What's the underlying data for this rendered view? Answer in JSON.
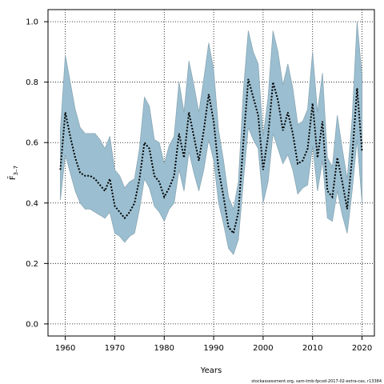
{
  "chart_data": {
    "type": "line",
    "xlabel": "Years",
    "ylabel": "F̄",
    "ylabel_sub": "3–7",
    "credit": "stockassessment.org, sam-tmb-fpcod-2017-02-extra-cas, r13384",
    "xlim": [
      1956.5,
      2022.5
    ],
    "ylim": [
      -0.04,
      1.04
    ],
    "x_ticks": [
      1960,
      1970,
      1980,
      1990,
      2000,
      2010,
      2020
    ],
    "y_ticks": [
      0.0,
      0.2,
      0.4,
      0.6,
      0.8,
      1.0
    ],
    "y_tick_labels": [
      "0.0",
      "0.2",
      "0.4",
      "0.6",
      "0.8",
      "1.0"
    ],
    "grid": true,
    "band_color": "#9bbfd1",
    "band_edge_color": "#8aa7b5",
    "line_color": "#000000",
    "series": [
      {
        "x": [
          1959,
          1960,
          1961,
          1962,
          1963,
          1964,
          1965,
          1966,
          1967,
          1968,
          1969,
          1970,
          1971,
          1972,
          1973,
          1974,
          1975,
          1976,
          1977,
          1978,
          1979,
          1980,
          1981,
          1982,
          1983,
          1984,
          1985,
          1986,
          1987,
          1988,
          1989,
          1990,
          1991,
          1992,
          1993,
          1994,
          1995,
          1996,
          1997,
          1998,
          1999,
          2000,
          2001,
          2002,
          2003,
          2004,
          2005,
          2006,
          2007,
          2008,
          2009,
          2010,
          2011,
          2012,
          2013,
          2014,
          2015,
          2016,
          2017,
          2018,
          2019,
          2020
        ],
        "estimate": [
          0.51,
          0.7,
          0.62,
          0.55,
          0.5,
          0.49,
          0.49,
          0.48,
          0.46,
          0.44,
          0.48,
          0.39,
          0.37,
          0.35,
          0.37,
          0.4,
          0.48,
          0.6,
          0.58,
          0.49,
          0.47,
          0.42,
          0.45,
          0.49,
          0.63,
          0.55,
          0.7,
          0.62,
          0.54,
          0.64,
          0.76,
          0.67,
          0.51,
          0.42,
          0.32,
          0.3,
          0.37,
          0.6,
          0.81,
          0.75,
          0.69,
          0.51,
          0.62,
          0.8,
          0.74,
          0.64,
          0.7,
          0.63,
          0.53,
          0.54,
          0.58,
          0.73,
          0.55,
          0.67,
          0.44,
          0.42,
          0.55,
          0.47,
          0.38,
          0.55,
          0.78,
          0.57
        ],
        "lower": [
          0.41,
          0.56,
          0.5,
          0.44,
          0.4,
          0.38,
          0.38,
          0.37,
          0.36,
          0.35,
          0.37,
          0.3,
          0.29,
          0.27,
          0.29,
          0.3,
          0.38,
          0.48,
          0.45,
          0.39,
          0.37,
          0.34,
          0.38,
          0.4,
          0.51,
          0.44,
          0.57,
          0.5,
          0.44,
          0.51,
          0.61,
          0.54,
          0.4,
          0.33,
          0.25,
          0.23,
          0.28,
          0.47,
          0.65,
          0.61,
          0.58,
          0.4,
          0.47,
          0.63,
          0.58,
          0.53,
          0.56,
          0.51,
          0.43,
          0.45,
          0.46,
          0.59,
          0.44,
          0.54,
          0.35,
          0.34,
          0.44,
          0.36,
          0.3,
          0.44,
          0.61,
          0.4
        ],
        "upper": [
          0.64,
          0.89,
          0.8,
          0.71,
          0.65,
          0.63,
          0.63,
          0.63,
          0.61,
          0.58,
          0.62,
          0.51,
          0.49,
          0.45,
          0.47,
          0.48,
          0.58,
          0.75,
          0.72,
          0.61,
          0.6,
          0.53,
          0.59,
          0.62,
          0.8,
          0.7,
          0.87,
          0.79,
          0.7,
          0.81,
          0.93,
          0.84,
          0.64,
          0.54,
          0.42,
          0.38,
          0.47,
          0.77,
          0.97,
          0.9,
          0.86,
          0.62,
          0.75,
          0.97,
          0.9,
          0.79,
          0.86,
          0.78,
          0.66,
          0.67,
          0.71,
          0.9,
          0.7,
          0.83,
          0.55,
          0.52,
          0.69,
          0.58,
          0.48,
          0.68,
          1.0,
          0.82
        ]
      }
    ]
  }
}
